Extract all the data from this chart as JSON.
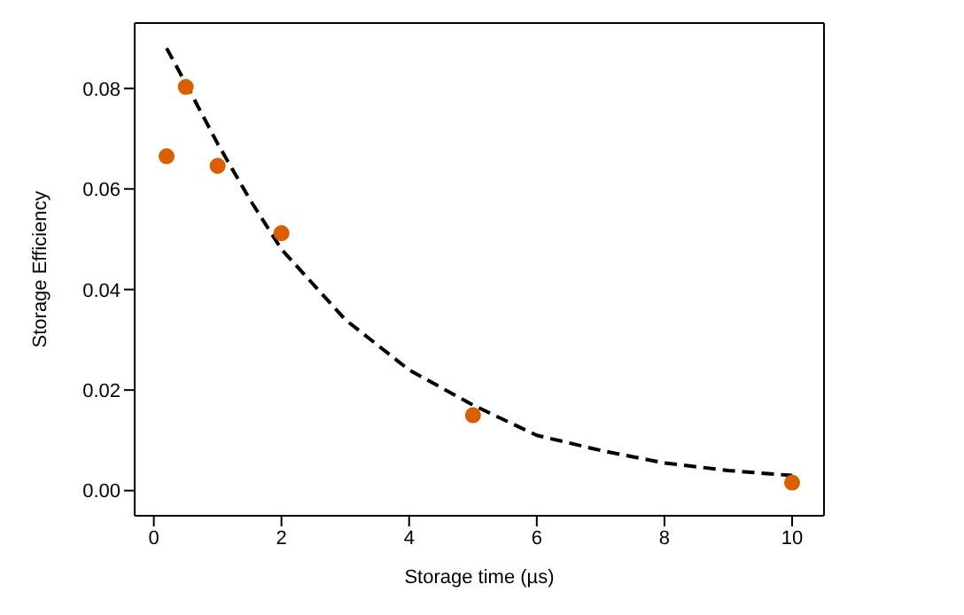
{
  "chart_data": {
    "type": "scatter",
    "xlabel": "Storage time (µs)",
    "ylabel": "Storage Efficiency",
    "xlim": [
      -0.3,
      10.5
    ],
    "xticks": [
      0,
      2,
      4,
      6,
      8,
      10
    ],
    "ylim": [
      -0.005,
      0.093
    ],
    "yticks": [
      {
        "value": 0,
        "label": "0.00"
      },
      {
        "value": 0.02,
        "label": "0.02"
      },
      {
        "value": 0.04,
        "label": "0.04"
      },
      {
        "value": 0.06,
        "label": "0.06"
      },
      {
        "value": 0.08,
        "label": "0.08"
      }
    ],
    "legend": false,
    "series": [
      {
        "color": "#d95f02",
        "marker": "circle",
        "x": [
          0.2,
          0.5,
          1,
          2,
          5,
          10
        ],
        "values": [
          0.0665,
          0.0803,
          0.0646,
          0.0512,
          0.015,
          0.0016
        ]
      },
      {
        "type": "line",
        "color": "#000000",
        "line_style": "dashed",
        "marker": "none",
        "x": [
          0.2,
          0.5,
          1,
          1.5,
          2,
          3,
          4,
          5,
          6,
          7,
          8,
          9,
          10
        ],
        "values": [
          0.088,
          0.081,
          0.069,
          0.058,
          0.048,
          0.034,
          0.024,
          0.017,
          0.011,
          0.008,
          0.0055,
          0.004,
          0.003
        ]
      }
    ]
  }
}
